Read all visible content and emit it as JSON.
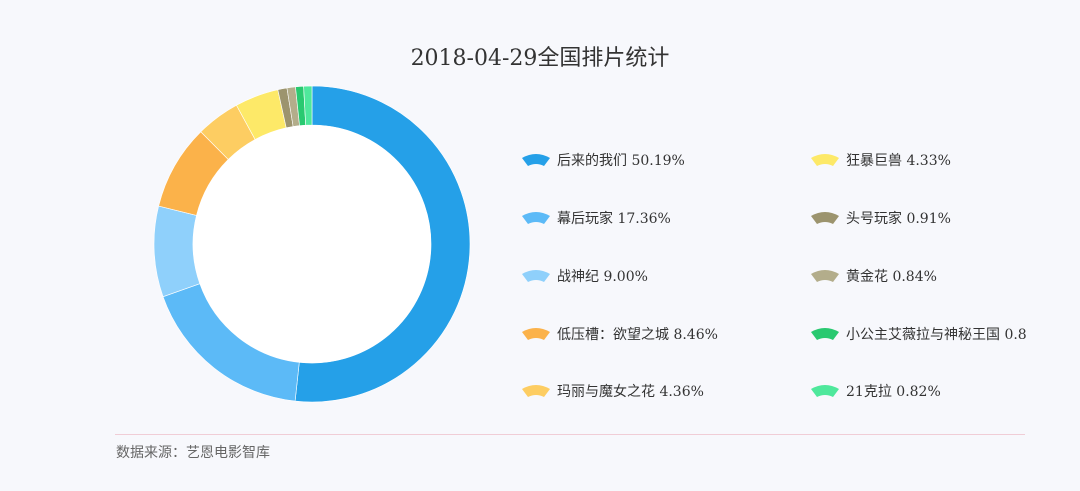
{
  "chart_data": {
    "type": "pie",
    "title": "2018-04-29全国排片统计",
    "series": [
      {
        "name": "后来的我们",
        "value": 50.19,
        "label": "50.19%",
        "color": "#25a0e8"
      },
      {
        "name": "幕后玩家",
        "value": 17.36,
        "label": "17.36%",
        "color": "#5cbaf7"
      },
      {
        "name": "战神纪",
        "value": 9.0,
        "label": "9.00%",
        "color": "#8fd0fb"
      },
      {
        "name": "低压槽：欲望之城",
        "value": 8.46,
        "label": "8.46%",
        "color": "#fbb24a"
      },
      {
        "name": "玛丽与魔女之花",
        "value": 4.36,
        "label": "4.36%",
        "color": "#fdcd62"
      },
      {
        "name": "狂暴巨兽",
        "value": 4.33,
        "label": "4.33%",
        "color": "#fde968"
      },
      {
        "name": "头号玩家",
        "value": 0.91,
        "label": "0.91%",
        "color": "#9c946e"
      },
      {
        "name": "黄金花",
        "value": 0.84,
        "label": "0.84%",
        "color": "#b3ad8b"
      },
      {
        "name": "小公主艾薇拉与神秘王国",
        "value": 0.8,
        "label": "0.8",
        "color": "#29c970"
      },
      {
        "name": "21克拉",
        "value": 0.82,
        "label": "0.82%",
        "color": "#4fe89c"
      }
    ],
    "legend_position": "right"
  },
  "source": "数据来源：艺恩电影智库"
}
